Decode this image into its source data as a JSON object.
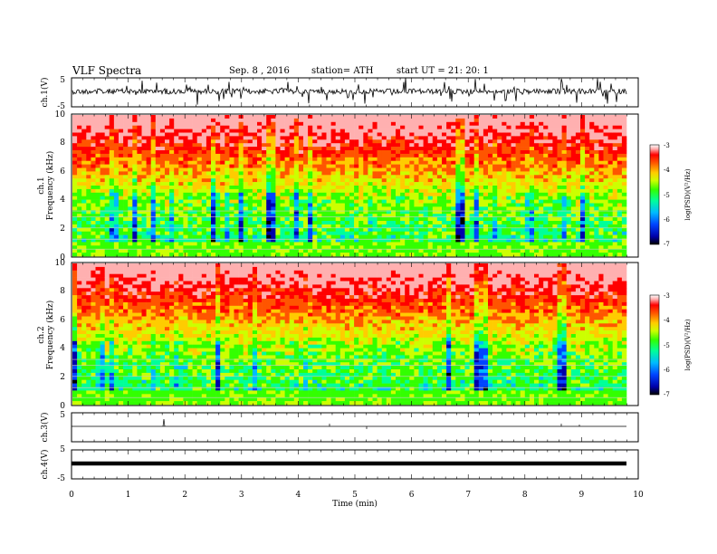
{
  "header": {
    "title": "VLF  Spectra",
    "date": "Sep. 8  , 2016",
    "station": "station= ATH",
    "start": "start  UT  =    21: 20: 1"
  },
  "chart_data": [
    {
      "type": "line",
      "name": "ch1-waveform",
      "ylabel": "ch.1(V)",
      "ylim": [
        -5,
        5
      ],
      "yticks": [
        "5",
        "-5"
      ],
      "xlim": [
        0,
        10
      ]
    },
    {
      "type": "heatmap",
      "name": "ch1-spectrogram",
      "ylabel": "ch.1\nFrequency  (kHz)",
      "ylim": [
        0,
        10
      ],
      "yticks": [
        "0",
        "2",
        "4",
        "6",
        "8",
        "10"
      ],
      "xlim": [
        0,
        9.83
      ],
      "colorbar": {
        "label": "log(PSD)(V²/Hz)",
        "range": [
          -7,
          -3
        ],
        "ticks": [
          "-3",
          "-4",
          "-5",
          "-6",
          "-7"
        ]
      }
    },
    {
      "type": "heatmap",
      "name": "ch2-spectrogram",
      "ylabel": "ch.2\nFrequency  (kHz)",
      "ylim": [
        0,
        10
      ],
      "yticks": [
        "0",
        "2",
        "4",
        "6",
        "8",
        "10"
      ],
      "xlim": [
        0,
        9.83
      ],
      "colorbar": {
        "label": "log(PSD)(V²/Hz)",
        "range": [
          -7,
          -3
        ],
        "ticks": [
          "-3",
          "-4",
          "-5",
          "-6",
          "-7"
        ]
      }
    },
    {
      "type": "line",
      "name": "ch3-waveform",
      "ylabel": "ch.3(V)",
      "ylim": [
        -5,
        5
      ],
      "yticks": [
        "5"
      ]
    },
    {
      "type": "line",
      "name": "ch4-waveform",
      "ylabel": "ch.4(V)",
      "ylim": [
        -5,
        5
      ],
      "yticks": [
        "5",
        "-5"
      ],
      "xlabel": "Time  (min)",
      "xlim": [
        0,
        10
      ],
      "xticks": [
        "0",
        "1",
        "2",
        "3",
        "4",
        "5",
        "6",
        "7",
        "8",
        "9",
        "10"
      ]
    }
  ],
  "colors": {
    "scale": [
      "#000000",
      "#0000aa",
      "#0044ff",
      "#00bbff",
      "#00ff99",
      "#33ff00",
      "#ccff00",
      "#ffcc00",
      "#ff5500",
      "#ff0000",
      "#ffb0b0",
      "#ffffff"
    ]
  }
}
